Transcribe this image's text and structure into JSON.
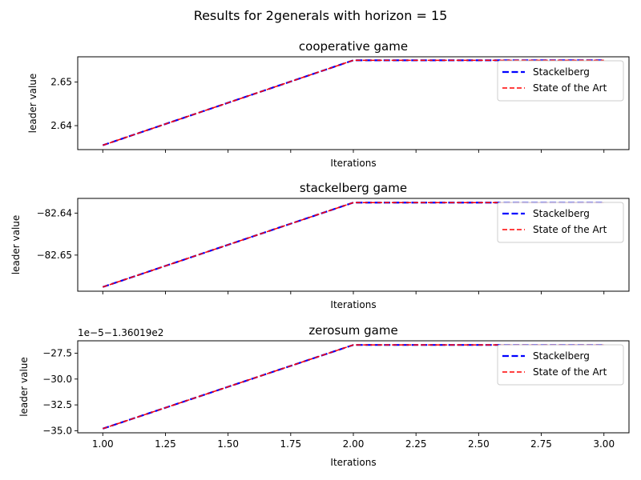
{
  "suptitle": "Results for 2generals with horizon = 15",
  "colors": {
    "stackelberg": "#0000ff",
    "sota": "#ff0000",
    "axes": "#000000",
    "background": "#ffffff"
  },
  "chart_data": [
    {
      "type": "line",
      "title": "cooperative game",
      "xlabel": "Iterations",
      "ylabel": "leader value",
      "x": [
        1,
        2,
        3
      ],
      "xlim": [
        0.9,
        3.1
      ],
      "ylim": [
        2.6345,
        2.6558
      ],
      "show_xticklabels": false,
      "yticks": [
        2.64,
        2.65
      ],
      "ytick_labels": [
        "2.64",
        "2.65"
      ],
      "offset_text": "",
      "legend": "top-right",
      "grid": false,
      "series": [
        {
          "name": "Stackelberg",
          "values": [
            2.6355,
            2.655,
            2.655
          ],
          "color": "#0000ff",
          "style": "dashed"
        },
        {
          "name": "State of the Art",
          "values": [
            2.6355,
            2.655,
            2.655
          ],
          "color": "#ff0000",
          "style": "dashed"
        }
      ]
    },
    {
      "type": "line",
      "title": "stackelberg game",
      "xlabel": "Iterations",
      "ylabel": "leader value",
      "x": [
        1,
        2,
        3
      ],
      "xlim": [
        0.9,
        3.1
      ],
      "ylim": [
        -82.6586,
        -82.6365
      ],
      "show_xticklabels": false,
      "yticks": [
        -82.65,
        -82.64
      ],
      "ytick_labels": [
        "−82.65",
        "−82.64"
      ],
      "offset_text": "",
      "legend": "top-right",
      "grid": false,
      "series": [
        {
          "name": "Stackelberg",
          "values": [
            -82.6576,
            -82.6375,
            -82.6375
          ],
          "color": "#0000ff",
          "style": "dashed"
        },
        {
          "name": "State of the Art",
          "values": [
            -82.6576,
            -82.6375,
            -82.6375
          ],
          "color": "#ff0000",
          "style": "dashed"
        }
      ]
    },
    {
      "type": "line",
      "title": "zerosum game",
      "xlabel": "Iterations",
      "ylabel": "leader value",
      "x": [
        1,
        2,
        3
      ],
      "xlim": [
        0.9,
        3.1
      ],
      "ylim": [
        -35.2,
        -26.3
      ],
      "show_xticklabels": true,
      "xticks": [
        1.0,
        1.25,
        1.5,
        1.75,
        2.0,
        2.25,
        2.5,
        2.75,
        3.0
      ],
      "xtick_labels": [
        "1.00",
        "1.25",
        "1.50",
        "1.75",
        "2.00",
        "2.25",
        "2.50",
        "2.75",
        "3.00"
      ],
      "yticks": [
        -35.0,
        -32.5,
        -30.0,
        -27.5
      ],
      "ytick_labels": [
        "−35.0",
        "−32.5",
        "−30.0",
        "−27.5"
      ],
      "offset_text": "1e−5−1.36019e2",
      "legend": "top-right",
      "grid": false,
      "series": [
        {
          "name": "Stackelberg",
          "values": [
            -34.8,
            -26.7,
            -26.7
          ],
          "color": "#0000ff",
          "style": "dashed"
        },
        {
          "name": "State of the Art",
          "values": [
            -34.8,
            -26.7,
            -26.7
          ],
          "color": "#ff0000",
          "style": "dashed"
        }
      ]
    }
  ]
}
